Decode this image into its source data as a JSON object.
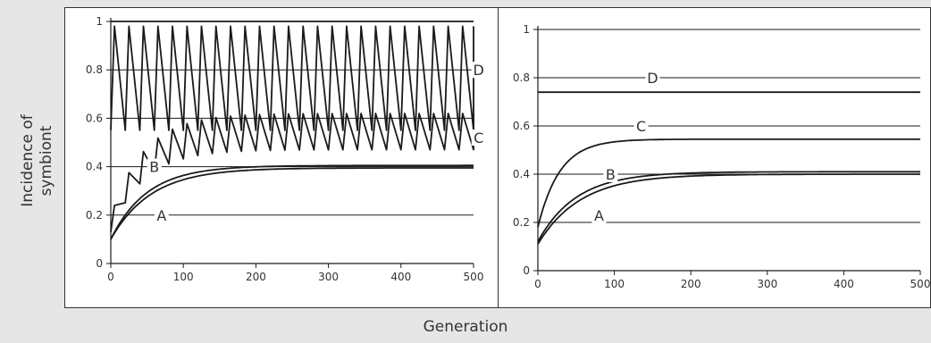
{
  "figure": {
    "ylabel": "Incidence of\nsymbiont",
    "xlabel": "Generation"
  },
  "colors": {
    "background": "#e6e6e6",
    "panel": "#ffffff",
    "line": "#1a1a1a",
    "text": "#333333"
  },
  "chart_data": [
    {
      "type": "line",
      "xlim": [
        0,
        500
      ],
      "ylim": [
        0,
        1
      ],
      "xticks": [
        0,
        100,
        200,
        300,
        400,
        500
      ],
      "yticks": [
        0,
        0.2,
        0.4,
        0.6,
        0.8,
        1
      ],
      "ytick_labels": [
        "0",
        "0.2",
        "0.4",
        "0.6",
        "0.8",
        "1"
      ],
      "grid": "horizontal",
      "series": [
        {
          "name": "A",
          "type": "smooth",
          "start": 0.1,
          "plateau": 0.395,
          "rate": 0.018
        },
        {
          "name": "B",
          "type": "smooth",
          "start": 0.1,
          "plateau": 0.405,
          "rate": 0.02
        },
        {
          "name": "C",
          "type": "sawtooth",
          "period": 20,
          "minStart": 0.13,
          "minEnd": 0.47,
          "maxStart": 0.24,
          "maxEnd": 0.62,
          "rate": 0.022
        },
        {
          "name": "D",
          "type": "sawtooth",
          "period": 20,
          "minStart": 0.55,
          "minEnd": 0.55,
          "maxStart": 0.98,
          "maxEnd": 0.98,
          "rate": 0
        },
        {
          "name": "",
          "type": "constant",
          "value": 1.0
        }
      ],
      "labels": [
        {
          "text": "A",
          "x": 70,
          "y": 0.2
        },
        {
          "text": "B",
          "x": 60,
          "y": 0.4
        },
        {
          "text": "C",
          "x": 507,
          "y": 0.52
        },
        {
          "text": "D",
          "x": 507,
          "y": 0.8
        }
      ]
    },
    {
      "type": "line",
      "xlim": [
        0,
        500
      ],
      "ylim": [
        0,
        1
      ],
      "xticks": [
        0,
        100,
        200,
        300,
        400,
        500
      ],
      "yticks": [
        0,
        0.2,
        0.4,
        0.6,
        0.8,
        1
      ],
      "ytick_labels": [
        "0",
        "0.2",
        "0.4",
        "0.6",
        "0.8",
        "1"
      ],
      "grid": "horizontal",
      "series": [
        {
          "name": "A",
          "type": "smooth",
          "start": 0.11,
          "plateau": 0.4,
          "rate": 0.018
        },
        {
          "name": "B",
          "type": "smooth",
          "start": 0.12,
          "plateau": 0.41,
          "rate": 0.02
        },
        {
          "name": "C",
          "type": "smooth",
          "start": 0.18,
          "plateau": 0.545,
          "rate": 0.035
        },
        {
          "name": "D",
          "type": "constant",
          "value": 0.74
        }
      ],
      "labels": [
        {
          "text": "A",
          "x": 80,
          "y": 0.23
        },
        {
          "text": "B",
          "x": 95,
          "y": 0.4
        },
        {
          "text": "C",
          "x": 135,
          "y": 0.6
        },
        {
          "text": "D",
          "x": 150,
          "y": 0.8
        }
      ]
    }
  ]
}
